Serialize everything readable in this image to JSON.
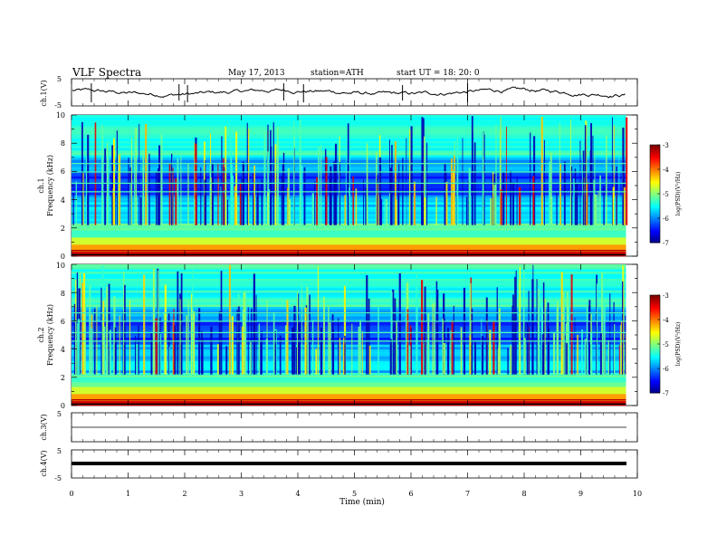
{
  "header": {
    "title": "VLF  Spectra",
    "date": "May 17, 2013",
    "station": "station=ATH",
    "start": "start  UT  =    18: 20: 0"
  },
  "axes": {
    "ch1_label": "ch.1(V)",
    "ch3_label": "ch.3(V)",
    "ch4_label": "ch.4(V)",
    "spec1_label": "ch.1",
    "spec2_label": "ch.2",
    "freq_label": "Frequency  (kHz)",
    "time_label": "Time  (min)",
    "colorbar_label": "log(PSD)(V²/Hz)"
  },
  "chart_data": [
    {
      "type": "line",
      "panel": "ch.1(V)",
      "ylim": [
        -5,
        5
      ],
      "yticks": [
        "5",
        "-5"
      ],
      "xlim": [
        0,
        10
      ],
      "baseline_value": 0,
      "trace_end_min": 9.8,
      "spike_times_min": [
        0.35,
        1.9,
        2.05,
        3.75,
        4.1,
        5.85,
        7.0
      ]
    },
    {
      "type": "heatmap",
      "panel": "ch.1 Frequency (kHz)",
      "xlabel": "Time  (min)",
      "ylabel": "Frequency  (kHz)",
      "xlim": [
        0,
        10
      ],
      "ylim": [
        0,
        10
      ],
      "yticks": [
        "0",
        "2",
        "4",
        "6",
        "8",
        "10"
      ],
      "data_end_min": 9.8,
      "colorbar": {
        "label": "log(PSD)(V²/Hz)",
        "range": [
          -7,
          -3
        ],
        "ticks": [
          "-3",
          "-4",
          "-5",
          "-6",
          "-7"
        ]
      }
    },
    {
      "type": "heatmap",
      "panel": "ch.2 Frequency (kHz)",
      "xlabel": "Time  (min)",
      "ylabel": "Frequency  (kHz)",
      "xlim": [
        0,
        10
      ],
      "ylim": [
        0,
        10
      ],
      "yticks": [
        "0",
        "2",
        "4",
        "6",
        "8",
        "10"
      ],
      "data_end_min": 9.8,
      "colorbar": {
        "label": "log(PSD)(V²/Hz)",
        "range": [
          -7,
          -3
        ],
        "ticks": [
          "-3",
          "-4",
          "-5",
          "-6",
          "-7"
        ]
      }
    },
    {
      "type": "line",
      "panel": "ch.3(V)",
      "ylim": [
        -5,
        5
      ],
      "yticks": [
        "5"
      ],
      "xlim": [
        0,
        10
      ],
      "baseline_value": 0
    },
    {
      "type": "line",
      "panel": "ch.4(V)",
      "ylim": [
        -5,
        5
      ],
      "yticks": [
        "5",
        "-5"
      ],
      "xlim": [
        0,
        10
      ],
      "baseline_value": 0
    }
  ],
  "xticks": [
    "0",
    "1",
    "2",
    "3",
    "4",
    "5",
    "6",
    "7",
    "8",
    "9",
    "10"
  ]
}
